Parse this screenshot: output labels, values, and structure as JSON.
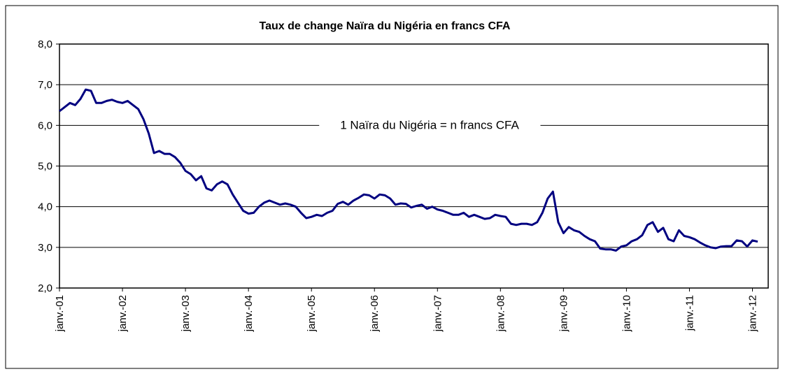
{
  "chart_data": {
    "type": "line",
    "title": "Taux de change Naïra du Nigéria en francs CFA",
    "annotation": "1 Naïra du Nigéria = n francs CFA",
    "categories": [
      "janv.-01",
      null,
      null,
      null,
      null,
      null,
      null,
      null,
      null,
      null,
      null,
      null,
      "janv.-02",
      null,
      null,
      null,
      null,
      null,
      null,
      null,
      null,
      null,
      null,
      null,
      "janv.-03",
      null,
      null,
      null,
      null,
      null,
      null,
      null,
      null,
      null,
      null,
      null,
      "janv.-04",
      null,
      null,
      null,
      null,
      null,
      null,
      null,
      null,
      null,
      null,
      null,
      "janv.-05",
      null,
      null,
      null,
      null,
      null,
      null,
      null,
      null,
      null,
      null,
      null,
      "janv.-06",
      null,
      null,
      null,
      null,
      null,
      null,
      null,
      null,
      null,
      null,
      null,
      "janv.-07",
      null,
      null,
      null,
      null,
      null,
      null,
      null,
      null,
      null,
      null,
      null,
      "janv.-08",
      null,
      null,
      null,
      null,
      null,
      null,
      null,
      null,
      null,
      null,
      null,
      "janv.-09",
      null,
      null,
      null,
      null,
      null,
      null,
      null,
      null,
      null,
      null,
      null,
      "janv.-10",
      null,
      null,
      null,
      null,
      null,
      null,
      null,
      null,
      null,
      null,
      null,
      "janv.-11",
      null,
      null,
      null,
      null,
      null,
      null,
      null,
      null,
      null,
      null,
      null,
      "janv.-12",
      null
    ],
    "series": [
      {
        "name": "Naïra en francs CFA",
        "color": "#000080",
        "values": [
          6.35,
          6.45,
          6.55,
          6.5,
          6.65,
          6.88,
          6.85,
          6.55,
          6.55,
          6.6,
          6.63,
          6.58,
          6.55,
          6.6,
          6.5,
          6.4,
          6.15,
          5.8,
          5.32,
          5.37,
          5.3,
          5.3,
          5.22,
          5.08,
          4.88,
          4.8,
          4.65,
          4.75,
          4.45,
          4.4,
          4.55,
          4.62,
          4.55,
          4.3,
          4.1,
          3.9,
          3.83,
          3.85,
          4.0,
          4.1,
          4.15,
          4.1,
          4.05,
          4.08,
          4.05,
          4.0,
          3.85,
          3.72,
          3.75,
          3.8,
          3.77,
          3.85,
          3.9,
          4.07,
          4.12,
          4.05,
          4.15,
          4.22,
          4.3,
          4.28,
          4.2,
          4.3,
          4.28,
          4.2,
          4.05,
          4.08,
          4.07,
          3.98,
          4.02,
          4.05,
          3.95,
          4.0,
          3.93,
          3.9,
          3.85,
          3.8,
          3.8,
          3.85,
          3.75,
          3.8,
          3.75,
          3.7,
          3.72,
          3.8,
          3.77,
          3.75,
          3.58,
          3.55,
          3.58,
          3.58,
          3.55,
          3.62,
          3.85,
          4.2,
          4.37,
          3.62,
          3.35,
          3.5,
          3.42,
          3.38,
          3.28,
          3.2,
          3.15,
          2.97,
          2.95,
          2.95,
          2.92,
          3.02,
          3.05,
          3.15,
          3.2,
          3.3,
          3.55,
          3.62,
          3.38,
          3.48,
          3.2,
          3.15,
          3.42,
          3.28,
          3.25,
          3.2,
          3.12,
          3.05,
          3.0,
          2.98,
          3.02,
          3.03,
          3.03,
          3.17,
          3.15,
          3.02,
          3.17,
          3.14
        ]
      }
    ],
    "ylim": [
      2,
      8
    ],
    "yticks": [
      {
        "value": 2,
        "label": "2,0"
      },
      {
        "value": 3,
        "label": "3,0"
      },
      {
        "value": 4,
        "label": "4,0"
      },
      {
        "value": 5,
        "label": "5,0"
      },
      {
        "value": 6,
        "label": "6,0"
      },
      {
        "value": 7,
        "label": "7,0"
      },
      {
        "value": 8,
        "label": "8,0"
      }
    ],
    "grid": true,
    "legend": false
  }
}
